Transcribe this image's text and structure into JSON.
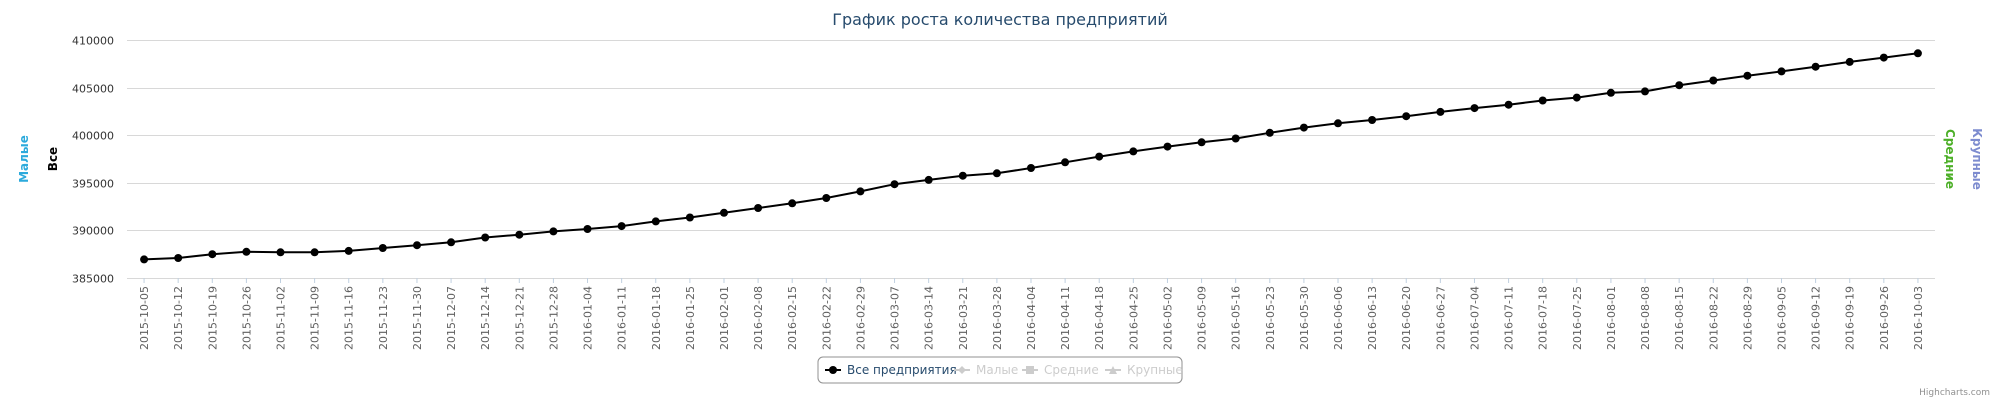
{
  "chart_data": {
    "type": "line",
    "title": "График роста количества предприятий",
    "y_axis_titles": {
      "left_outer": "Малые",
      "left_inner": "Все",
      "right_inner": "Средние",
      "right_outer": "Крупные"
    },
    "ylim": [
      385000,
      410000
    ],
    "yticks": [
      385000,
      390000,
      395000,
      400000,
      405000,
      410000
    ],
    "grid": true,
    "legend_placement": "bottom-center",
    "colors": {
      "series_main": "#000000",
      "title": "#274b6d",
      "axis_title_malye": "#2caadc",
      "axis_title_vse": "#000000",
      "axis_title_srednie": "#4caf27",
      "axis_title_krupnye": "#7d8ccf",
      "legend_hidden": "#cccccc",
      "grid": "#d8d8d8"
    },
    "x": [
      "2015-10-05",
      "2015-10-12",
      "2015-10-19",
      "2015-10-26",
      "2015-11-02",
      "2015-11-09",
      "2015-11-16",
      "2015-11-23",
      "2015-11-30",
      "2015-12-07",
      "2015-12-14",
      "2015-12-21",
      "2015-12-28",
      "2016-01-04",
      "2016-01-11",
      "2016-01-18",
      "2016-01-25",
      "2016-02-01",
      "2016-02-08",
      "2016-02-15",
      "2016-02-22",
      "2016-02-29",
      "2016-03-07",
      "2016-03-14",
      "2016-03-21",
      "2016-03-28",
      "2016-04-04",
      "2016-04-11",
      "2016-04-18",
      "2016-04-25",
      "2016-05-02",
      "2016-05-09",
      "2016-05-16",
      "2016-05-23",
      "2016-05-30",
      "2016-06-06",
      "2016-06-13",
      "2016-06-20",
      "2016-06-27",
      "2016-07-04",
      "2016-07-11",
      "2016-07-18",
      "2016-07-25",
      "2016-08-01",
      "2016-08-08",
      "2016-08-15",
      "2016-08-22",
      "2016-08-29",
      "2016-09-05",
      "2016-09-12",
      "2016-09-19",
      "2016-09-26",
      "2016-10-03"
    ],
    "series": [
      {
        "name": "Все предприятия",
        "visible": true,
        "values": [
          386950,
          387100,
          387500,
          387750,
          387700,
          387700,
          387850,
          388150,
          388450,
          388750,
          389250,
          389550,
          389900,
          390150,
          390450,
          390950,
          391350,
          391850,
          392350,
          392850,
          393400,
          394100,
          394850,
          395300,
          395750,
          396000,
          396550,
          397150,
          397750,
          398300,
          398800,
          399250,
          399650,
          400250,
          400800,
          401250,
          401600,
          402000,
          402450,
          402850,
          403200,
          403650,
          403950,
          404450,
          404600,
          405250,
          405750,
          406250,
          406700,
          407200,
          407700,
          408150,
          408600
        ]
      },
      {
        "name": "Малые",
        "visible": false
      },
      {
        "name": "Средние",
        "visible": false
      },
      {
        "name": "Крупные",
        "visible": false
      }
    ],
    "credits": "Highcharts.com"
  }
}
